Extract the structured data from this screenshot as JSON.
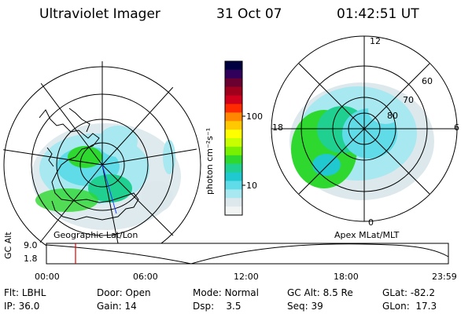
{
  "header": {
    "title": "Ultraviolet Imager",
    "date": "31 Oct 07",
    "time": "01:42:51 UT"
  },
  "colorbar": {
    "label": "photon cm⁻²s⁻¹",
    "ticks": [
      "100",
      "10"
    ],
    "colors": [
      "#000040",
      "#30005a",
      "#6a0030",
      "#a0001c",
      "#d0001c",
      "#ff2a00",
      "#ff8800",
      "#ffc800",
      "#ffff00",
      "#c8ff00",
      "#78f000",
      "#2ed82e",
      "#20d090",
      "#20c8d0",
      "#60dce8",
      "#a8e8f0",
      "#dce8ec",
      "#f2f4f4"
    ]
  },
  "left_map": {
    "caption": "Geographic Lat/Lon"
  },
  "right_map": {
    "caption": "Apex MLat/MLT",
    "mlt_labels": {
      "top": "12",
      "left": "18",
      "right": "6",
      "bottom": "0"
    },
    "lat_labels": [
      "60",
      "70",
      "80"
    ]
  },
  "timeline": {
    "ylabel": "GC Alt",
    "ymax": "9.0",
    "ymin": "1.8",
    "xticks": [
      "00:00",
      "06:00",
      "12:00",
      "18:00",
      "23:59"
    ],
    "current_marker": "01:42"
  },
  "footer": {
    "filter_label": "Flt:",
    "filter_value": "LBHL",
    "ip_label": "IP:",
    "ip_value": "36.0",
    "door_label": "Door:",
    "door_value": "Open",
    "gain_label": "Gain:",
    "gain_value": "14",
    "mode_label": "Mode:",
    "mode_value": "Normal",
    "dsp_label": "Dsp:",
    "dsp_value": "3.5",
    "gcalt_label": "GC Alt:",
    "gcalt_value": "8.5 Re",
    "seq_label": "Seq:",
    "seq_value": "39",
    "glat_label": "GLat:",
    "glat_value": "-82.2",
    "glon_label": "GLon:",
    "glon_value": "17.3"
  }
}
